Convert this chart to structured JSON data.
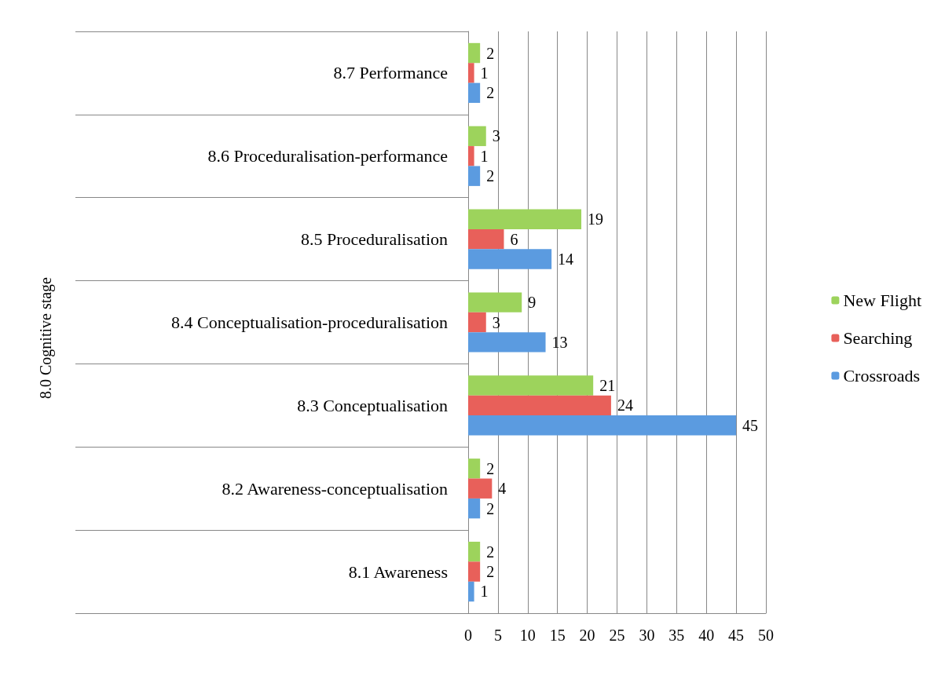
{
  "chart_data": {
    "type": "bar",
    "orientation": "horizontal",
    "annotations": [
      "8.0 Cognitive stage"
    ],
    "categories": [
      "8.7 Performance",
      "8.6 Proceduralisation-performance",
      "8.5 Proceduralisation",
      "8.4 Conceptualisation-proceduralisation",
      "8.3 Conceptualisation",
      "8.2 Awareness-conceptualisation",
      "8.1 Awareness"
    ],
    "series": [
      {
        "name": "New Flight",
        "color": "#9dd35c",
        "values": [
          2,
          3,
          19,
          9,
          21,
          2,
          2
        ]
      },
      {
        "name": "Searching",
        "color": "#e8605a",
        "values": [
          1,
          1,
          6,
          3,
          24,
          4,
          2
        ]
      },
      {
        "name": "Crossroads",
        "color": "#5b9be0",
        "values": [
          2,
          2,
          14,
          13,
          45,
          2,
          1
        ]
      }
    ],
    "xlim": [
      0,
      50
    ],
    "xticks": [
      0,
      5,
      10,
      15,
      20,
      25,
      30,
      35,
      40,
      45,
      50
    ],
    "grid": "x",
    "legend": "right",
    "data_labels": true
  }
}
